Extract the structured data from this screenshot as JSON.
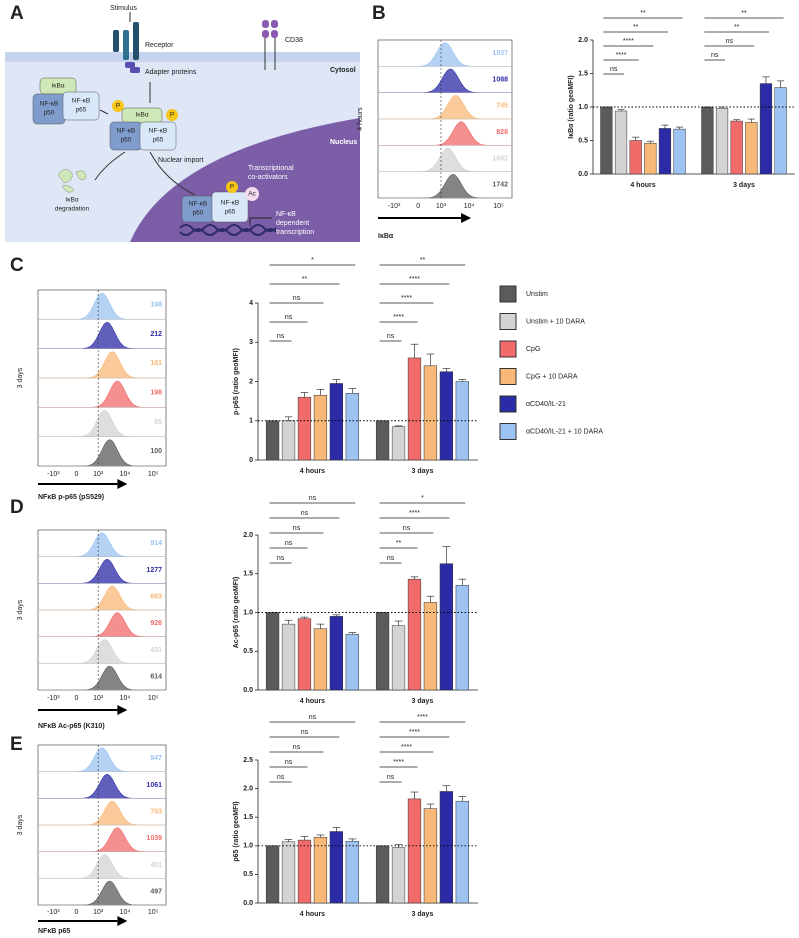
{
  "panel_labels": [
    "A",
    "B",
    "C",
    "D",
    "E"
  ],
  "diagram": {
    "stimulus": "Stimulus",
    "receptor": "Receptor",
    "cd38": "CD38",
    "adapter": "Adapter proteins",
    "cytosol": "Cytosol",
    "nucleus": "Nucleus",
    "nuclear_import": "Nuclear import",
    "degradation": [
      "IκBα",
      "degradation"
    ],
    "coactivators": [
      "Transcriptional",
      "co-activators"
    ],
    "transcription": [
      "NF-κB",
      "dependent",
      "transcription"
    ],
    "complexes": [
      {
        "ikba": "IκBα",
        "p50": [
          "NF-κB",
          "p50"
        ],
        "p65": [
          "NF-κB",
          "p65"
        ]
      },
      {
        "ikba": "IκBα",
        "p50": [
          "NF-κB",
          "p50"
        ],
        "p65": [
          "NF-κB",
          "p65"
        ],
        "phospho": [
          "P",
          "P"
        ]
      },
      {
        "p50": [
          "NF-κB",
          "p50"
        ],
        "p65": [
          "NF-κB",
          "p65"
        ],
        "phospho": [
          "P"
        ],
        "acetyl": "Ac"
      }
    ]
  },
  "histograms": [
    {
      "row_label": "4 hours",
      "axis_label": "IκBα",
      "mfi": [
        "1037",
        "1088",
        "745",
        "828",
        "1662",
        "1742"
      ],
      "ticks": [
        "-10³",
        "0",
        "10³",
        "10⁴",
        "10⁵"
      ]
    },
    {
      "row_label": "3 days",
      "axis_label": "NFκB p-p65 (pS529)",
      "mfi": [
        "198",
        "212",
        "181",
        "198",
        "65",
        "100"
      ],
      "ticks": [
        "-10³",
        "0",
        "10³",
        "10⁴",
        "10⁵"
      ]
    },
    {
      "row_label": "3 days",
      "axis_label": "NFκB Ac-p65 (K310)",
      "mfi": [
        "914",
        "1277",
        "663",
        "926",
        "431",
        "614"
      ],
      "ticks": [
        "-10³",
        "0",
        "10³",
        "10⁴",
        "10⁵"
      ]
    },
    {
      "row_label": "3 days",
      "axis_label": "NFκB p65",
      "mfi": [
        "947",
        "1061",
        "793",
        "1039",
        "401",
        "497"
      ],
      "ticks": [
        "-10³",
        "0",
        "10³",
        "10⁴",
        "10⁵"
      ]
    }
  ],
  "chart_data": [
    {
      "type": "bar",
      "ylabel": "IκBα (ratio geoMFI)",
      "categories": [
        "4 hours",
        "3 days"
      ],
      "reference_line": 1.0,
      "ylim": [
        0,
        2.0
      ],
      "yticks": [
        {
          "value": 0,
          "label": "0.0"
        },
        {
          "value": 0.5,
          "label": "0.5"
        },
        {
          "value": 1.0,
          "label": "1.0"
        },
        {
          "value": 1.5,
          "label": "1.5"
        },
        {
          "value": 2.0,
          "label": "2.0"
        }
      ],
      "series": [
        {
          "color": "#5b5b5b",
          "values": [
            1.0,
            1.0
          ],
          "errors": [
            0,
            0
          ]
        },
        {
          "color": "#d3d3d3",
          "values": [
            0.94,
            0.98
          ],
          "errors": [
            0.02,
            0.02
          ]
        },
        {
          "color": "#f26b6b",
          "values": [
            0.5,
            0.79
          ],
          "errors": [
            0.05,
            0.02
          ]
        },
        {
          "color": "#f8b878",
          "values": [
            0.46,
            0.77
          ],
          "errors": [
            0.03,
            0.05
          ]
        },
        {
          "color": "#2b2ba6",
          "values": [
            0.68,
            1.35
          ],
          "errors": [
            0.05,
            0.1
          ]
        },
        {
          "color": "#9cc3f2",
          "values": [
            0.67,
            1.29
          ],
          "errors": [
            0.03,
            0.1
          ]
        }
      ],
      "annotations": [
        [
          {
            "label": "ns",
            "vs": 1
          },
          {
            "label": "****",
            "vs": 2
          },
          {
            "label": "****",
            "vs": 3
          },
          {
            "label": "**",
            "vs": 4
          },
          {
            "label": "**",
            "vs": 5
          }
        ],
        [
          {
            "label": "ns",
            "vs": 1
          },
          {
            "label": "ns",
            "vs": 3
          },
          {
            "label": "**",
            "vs": 4
          },
          {
            "label": "**",
            "vs": 5
          }
        ]
      ]
    },
    {
      "type": "bar",
      "ylabel": "p-p65 (ratio geoMFI)",
      "categories": [
        "4 hours",
        "3 days"
      ],
      "reference_line": 1,
      "legend": "right",
      "ylim": [
        0,
        4
      ],
      "yticks": [
        0,
        1,
        2,
        3,
        4
      ],
      "series": [
        {
          "name": "Unstim",
          "color": "#5b5b5b",
          "values": [
            1.0,
            1.0
          ],
          "errors": [
            0,
            0
          ]
        },
        {
          "name": "Unstim + 10 DARA",
          "color": "#d3d3d3",
          "values": [
            1.0,
            0.85
          ],
          "errors": [
            0.1,
            0.02
          ]
        },
        {
          "name": "CpG",
          "color": "#f26b6b",
          "values": [
            1.6,
            2.6
          ],
          "errors": [
            0.12,
            0.35
          ]
        },
        {
          "name": "CpG + 10 DARA",
          "color": "#f8b878",
          "values": [
            1.65,
            2.4
          ],
          "errors": [
            0.15,
            0.3
          ]
        },
        {
          "name": "αCD40/IL-21",
          "color": "#2b2ba6",
          "values": [
            1.95,
            2.25
          ],
          "errors": [
            0.1,
            0.08
          ]
        },
        {
          "name": "αCD40/IL-21 + 10 DARA",
          "color": "#9cc3f2",
          "values": [
            1.7,
            2.0
          ],
          "errors": [
            0.12,
            0.05
          ]
        }
      ],
      "annotations": [
        [
          {
            "label": "ns",
            "vs": 1
          },
          {
            "label": "ns",
            "vs": 2
          },
          {
            "label": "ns",
            "vs": 3
          },
          {
            "label": "**",
            "vs": 4
          },
          {
            "label": "*",
            "vs": 5
          }
        ],
        [
          {
            "label": "ns",
            "vs": 1
          },
          {
            "label": "****",
            "vs": 2
          },
          {
            "label": "****",
            "vs": 3
          },
          {
            "label": "****",
            "vs": 4
          },
          {
            "label": "**",
            "vs": 5
          }
        ]
      ]
    },
    {
      "type": "bar",
      "ylabel": "Ac-p65 (ratio geoMFI)",
      "categories": [
        "4 hours",
        "3 days"
      ],
      "reference_line": 1.0,
      "ylim": [
        0,
        2.0
      ],
      "yticks": [
        {
          "value": 0,
          "label": "0.0"
        },
        {
          "value": 0.5,
          "label": "0.5"
        },
        {
          "value": 1.0,
          "label": "1.0"
        },
        {
          "value": 1.5,
          "label": "1.5"
        },
        {
          "value": 2.0,
          "label": "2.0"
        }
      ],
      "series": [
        {
          "color": "#5b5b5b",
          "values": [
            1.0,
            1.0
          ],
          "errors": [
            0,
            0
          ]
        },
        {
          "color": "#d3d3d3",
          "values": [
            0.85,
            0.83
          ],
          "errors": [
            0.05,
            0.06
          ]
        },
        {
          "color": "#f26b6b",
          "values": [
            0.92,
            1.43
          ],
          "errors": [
            0.02,
            0.03
          ]
        },
        {
          "color": "#f8b878",
          "values": [
            0.79,
            1.13
          ],
          "errors": [
            0.06,
            0.08
          ]
        },
        {
          "color": "#2b2ba6",
          "values": [
            0.95,
            1.63
          ],
          "errors": [
            0.02,
            0.22
          ]
        },
        {
          "color": "#9cc3f2",
          "values": [
            0.72,
            1.35
          ],
          "errors": [
            0.02,
            0.08
          ]
        }
      ],
      "annotations": [
        [
          {
            "label": "ns",
            "vs": 1
          },
          {
            "label": "ns",
            "vs": 2
          },
          {
            "label": "ns",
            "vs": 3
          },
          {
            "label": "ns",
            "vs": 4
          },
          {
            "label": "ns",
            "vs": 5
          }
        ],
        [
          {
            "label": "ns",
            "vs": 1
          },
          {
            "label": "**",
            "vs": 2
          },
          {
            "label": "ns",
            "vs": 3
          },
          {
            "label": "****",
            "vs": 4
          },
          {
            "label": "*",
            "vs": 5
          }
        ]
      ]
    },
    {
      "type": "bar",
      "ylabel": "p65 (ratio geoMFI)",
      "categories": [
        "4 hours",
        "3 days"
      ],
      "reference_line": 1.0,
      "ylim": [
        0,
        2.5
      ],
      "yticks": [
        {
          "value": 0,
          "label": "0.0"
        },
        {
          "value": 0.5,
          "label": "0.5"
        },
        {
          "value": 1.0,
          "label": "1.0"
        },
        {
          "value": 1.5,
          "label": "1.5"
        },
        {
          "value": 2.0,
          "label": "2.0"
        },
        {
          "value": 2.5,
          "label": "2.5"
        }
      ],
      "series": [
        {
          "color": "#5b5b5b",
          "values": [
            1.0,
            1.0
          ],
          "errors": [
            0,
            0
          ]
        },
        {
          "color": "#d3d3d3",
          "values": [
            1.07,
            0.97
          ],
          "errors": [
            0.04,
            0.05
          ]
        },
        {
          "color": "#f26b6b",
          "values": [
            1.1,
            1.82
          ],
          "errors": [
            0.06,
            0.12
          ]
        },
        {
          "color": "#f8b878",
          "values": [
            1.15,
            1.65
          ],
          "errors": [
            0.04,
            0.08
          ]
        },
        {
          "color": "#2b2ba6",
          "values": [
            1.25,
            1.95
          ],
          "errors": [
            0.07,
            0.1
          ]
        },
        {
          "color": "#9cc3f2",
          "values": [
            1.08,
            1.78
          ],
          "errors": [
            0.04,
            0.08
          ]
        }
      ],
      "annotations": [
        [
          {
            "label": "ns",
            "vs": 1
          },
          {
            "label": "ns",
            "vs": 2
          },
          {
            "label": "ns",
            "vs": 3
          },
          {
            "label": "ns",
            "vs": 4
          },
          {
            "label": "ns",
            "vs": 5
          }
        ],
        [
          {
            "label": "ns",
            "vs": 1
          },
          {
            "label": "****",
            "vs": 2
          },
          {
            "label": "****",
            "vs": 3
          },
          {
            "label": "****",
            "vs": 4
          },
          {
            "label": "****",
            "vs": 5
          }
        ]
      ]
    }
  ]
}
